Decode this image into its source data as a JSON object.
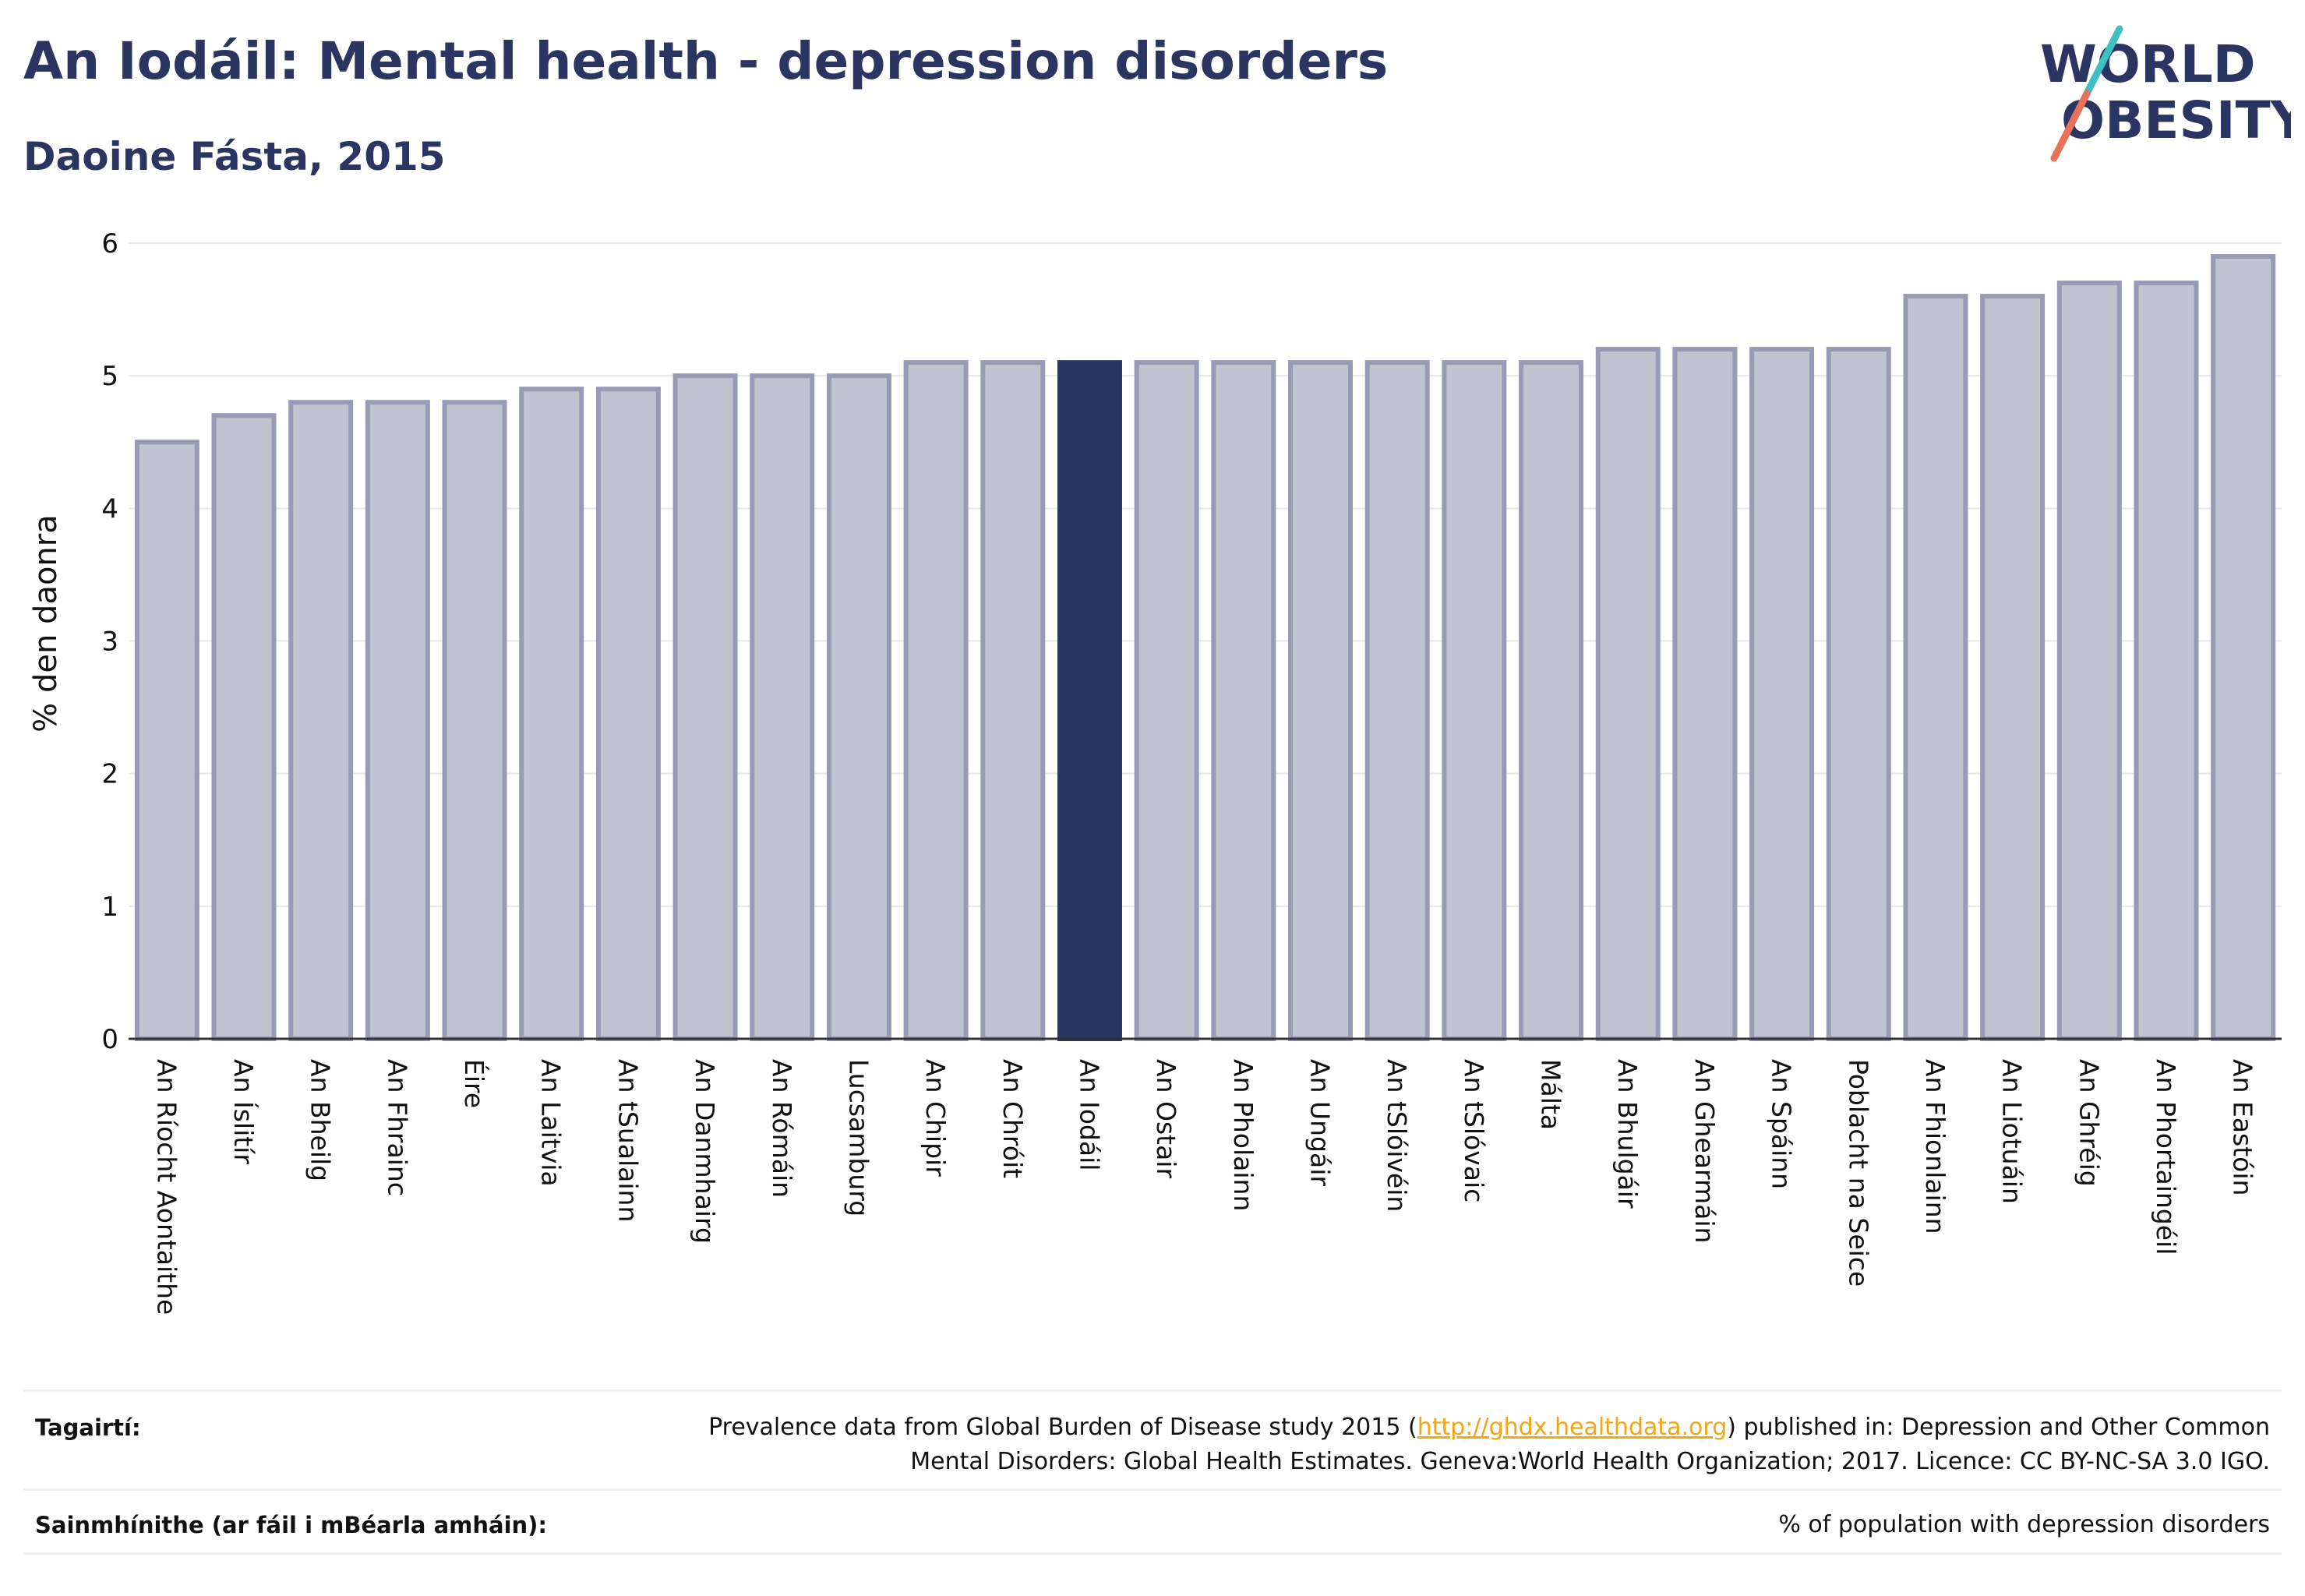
{
  "header": {
    "title": "An Iodáil: Mental health - depression disorders",
    "subtitle": "Daoine Fásta, 2015"
  },
  "logo": {
    "line1": "WORLD",
    "line2": "OBESITY",
    "color_text": "#2b3561",
    "color_slash_top": "#3fbfbf",
    "color_slash_bottom": "#e8715a"
  },
  "colors": {
    "bar": "#c0c3d0",
    "bar_stroke": "#979cb4",
    "highlight": "#2b3561",
    "grid": "#e6e8ee",
    "axis": "#333333"
  },
  "chart_data": {
    "type": "bar",
    "title": "An Iodáil: Mental health - depression disorders",
    "subtitle": "Daoine Fásta, 2015",
    "xlabel": "",
    "ylabel": "% den daonra",
    "ylim": [
      0,
      6
    ],
    "yticks": [
      0,
      1,
      2,
      3,
      4,
      5,
      6
    ],
    "grid": true,
    "highlight": "An Iodáil",
    "categories": [
      "An Ríocht Aontaithe",
      "An Íslitír",
      "An Bheilg",
      "An Fhrainc",
      "Éire",
      "An Laitvia",
      "An tSualainn",
      "An Danmhairg",
      "An Rómáin",
      "Lucsamburg",
      "An Chipir",
      "An Chróit",
      "An Iodáil",
      "An Ostair",
      "An Pholainn",
      "An Ungáir",
      "An tSlóivéin",
      "An tSlóvaic",
      "Málta",
      "An Bhulgáir",
      "An Ghearmáin",
      "An Spáinn",
      "Poblacht na Seice",
      "An Fhionlainn",
      "An Liotuáin",
      "An Ghréig",
      "An Phortaingéil",
      "An Eastóin"
    ],
    "values": [
      4.5,
      4.7,
      4.8,
      4.8,
      4.8,
      4.9,
      4.9,
      5.0,
      5.0,
      5.0,
      5.1,
      5.1,
      5.1,
      5.1,
      5.1,
      5.1,
      5.1,
      5.1,
      5.1,
      5.2,
      5.2,
      5.2,
      5.2,
      5.6,
      5.6,
      5.7,
      5.7,
      5.9
    ]
  },
  "footer": {
    "references_label": "Tagairtí:",
    "references_pre": "Prevalence data from Global Burden of Disease study 2015 (",
    "references_link": "http://ghdx.healthdata.org",
    "references_post": ") published in: Depression and Other Common",
    "references_line2": "Mental Disorders: Global Health Estimates. Geneva:World Health Organization; 2017. Licence: CC BY-NC-SA 3.0 IGO.",
    "definitions_label": "Sainmhínithe (ar fáil i mBéarla amháin):",
    "definitions_text": "% of population with depression disorders"
  }
}
